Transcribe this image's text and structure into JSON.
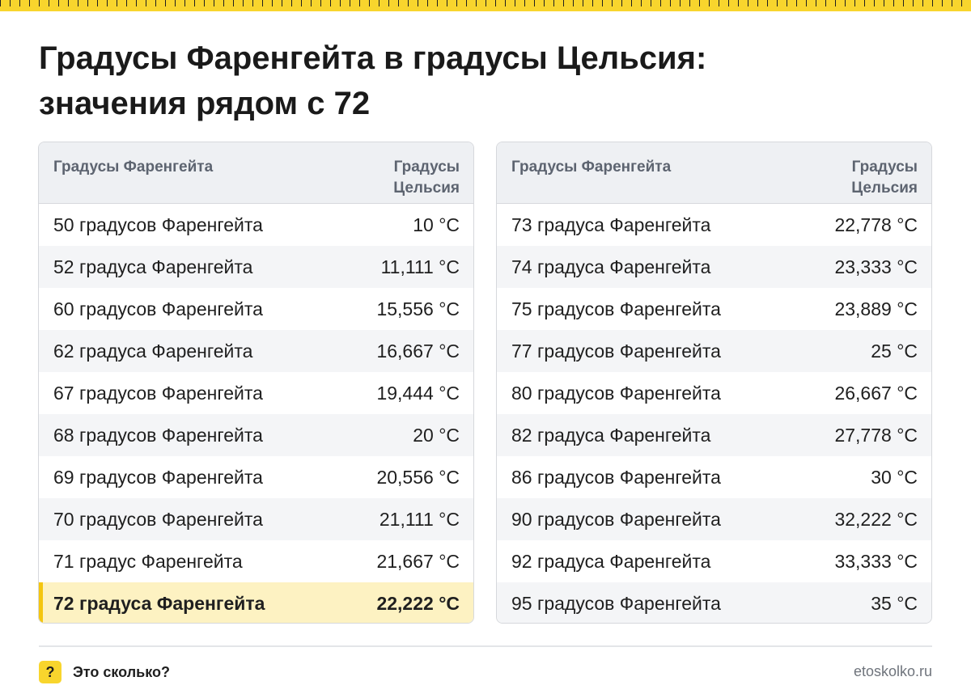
{
  "title": {
    "line1": "Градусы Фаренгейта в градусы Цельсия:",
    "line2": "значения рядом с 72"
  },
  "table_left": {
    "header_f": "Градусы Фаренгейта",
    "header_c_line1": "Градусы",
    "header_c_line2": "Цельсия",
    "rows": [
      {
        "f": "50 градусов Фаренгейта",
        "c": "10 °C"
      },
      {
        "f": "52 градуса Фаренгейта",
        "c": "11,111 °C"
      },
      {
        "f": "60 градусов Фаренгейта",
        "c": "15,556 °C"
      },
      {
        "f": "62 градуса Фаренгейта",
        "c": "16,667 °C"
      },
      {
        "f": "67 градусов Фаренгейта",
        "c": "19,444 °C"
      },
      {
        "f": "68 градусов Фаренгейта",
        "c": "20 °C"
      },
      {
        "f": "69 градусов Фаренгейта",
        "c": "20,556 °C"
      },
      {
        "f": "70 градусов Фаренгейта",
        "c": "21,111 °C"
      },
      {
        "f": "71 градус Фаренгейта",
        "c": "21,667 °C"
      },
      {
        "f": "72 градуса Фаренгейта",
        "c": "22,222 °C",
        "highlight": true
      }
    ]
  },
  "table_right": {
    "header_f": "Градусы Фаренгейта",
    "header_c_line1": "Градусы",
    "header_c_line2": "Цельсия",
    "rows": [
      {
        "f": "73 градуса Фаренгейта",
        "c": "22,778 °C"
      },
      {
        "f": "74 градуса Фаренгейта",
        "c": "23,333 °C"
      },
      {
        "f": "75 градусов Фаренгейта",
        "c": "23,889 °C"
      },
      {
        "f": "77 градусов Фаренгейта",
        "c": "25 °C"
      },
      {
        "f": "80 градусов Фаренгейта",
        "c": "26,667 °C"
      },
      {
        "f": "82 градуса Фаренгейта",
        "c": "27,778 °C"
      },
      {
        "f": "86 градусов Фаренгейта",
        "c": "30 °C"
      },
      {
        "f": "90 градусов Фаренгейта",
        "c": "32,222 °C"
      },
      {
        "f": "92 градуса Фаренгейта",
        "c": "33,333 °C"
      },
      {
        "f": "95 градусов Фаренгейта",
        "c": "35 °C"
      }
    ]
  },
  "footer": {
    "badge": "?",
    "brand": "Это сколько?",
    "site": "etoskolko.ru"
  },
  "colors": {
    "accent_yellow": "#f8d52d",
    "highlight_bg": "#fdf2c2",
    "header_bg": "#eef0f3"
  }
}
